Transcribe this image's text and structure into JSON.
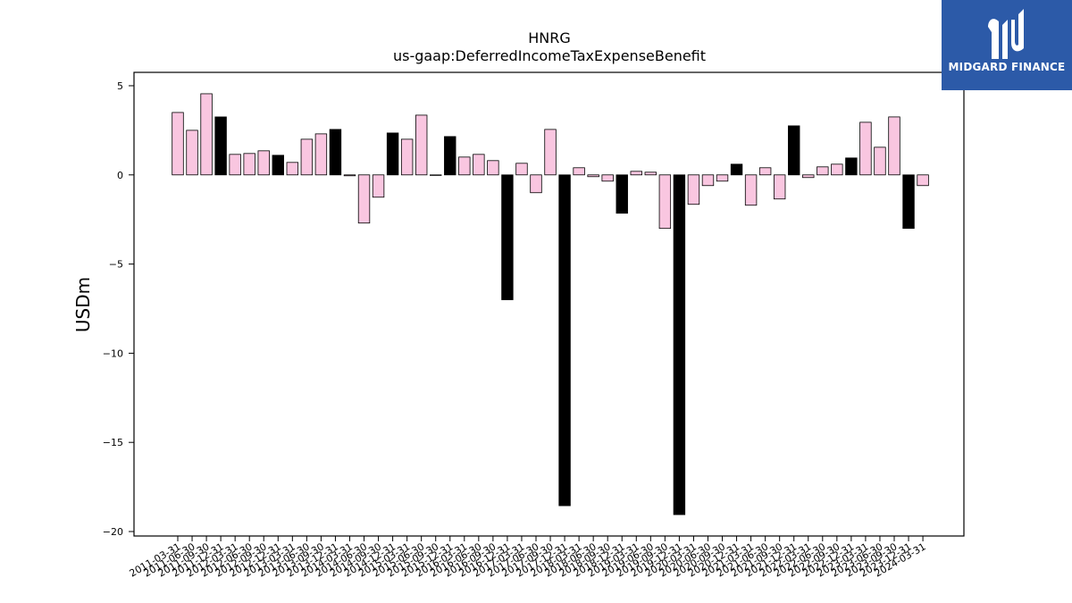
{
  "chart_data": {
    "type": "bar",
    "title": "HNRG",
    "subtitle": "us-gaap:DeferredIncomeTaxExpenseBenefit",
    "ylabel": "USDm",
    "xlabel": "",
    "ylim": [
      -20.25,
      5.75
    ],
    "yticks": [
      5,
      0,
      -5,
      -10,
      -15,
      -20
    ],
    "ytick_labels": [
      "5",
      "0",
      "−5",
      "−10",
      "−15",
      "−20"
    ],
    "grid": false,
    "colors": {
      "quarter": "#f9c6e0",
      "year_end": "#000000",
      "edge": "#000000"
    },
    "categories": [
      "2011-03-31",
      "2011-06-30",
      "2011-09-30",
      "2011-12-31",
      "2012-03-31",
      "2012-06-30",
      "2012-09-30",
      "2012-12-31",
      "2013-03-31",
      "2013-06-30",
      "2013-09-30",
      "2013-12-31",
      "2014-03-31",
      "2014-06-30",
      "2014-09-30",
      "2014-12-31",
      "2015-03-31",
      "2015-06-30",
      "2015-09-30",
      "2015-12-31",
      "2016-03-31",
      "2016-06-30",
      "2016-09-30",
      "2016-12-31",
      "2017-03-31",
      "2017-06-30",
      "2017-09-30",
      "2017-12-31",
      "2018-03-31",
      "2018-06-30",
      "2018-09-30",
      "2018-12-31",
      "2019-03-31",
      "2019-06-30",
      "2019-09-30",
      "2019-12-31",
      "2020-03-31",
      "2020-06-30",
      "2020-09-30",
      "2020-12-31",
      "2021-03-31",
      "2021-06-30",
      "2021-09-30",
      "2021-12-31",
      "2022-03-31",
      "2022-06-30",
      "2022-09-30",
      "2022-12-31",
      "2023-03-31",
      "2023-06-30",
      "2023-09-30",
      "2023-12-31",
      "2024-03-31"
    ],
    "values": [
      3.5,
      2.5,
      4.55,
      3.25,
      1.15,
      1.2,
      1.35,
      1.1,
      0.7,
      2.0,
      2.3,
      2.55,
      -0.05,
      -2.7,
      -1.25,
      2.35,
      2.0,
      3.35,
      0.0,
      2.15,
      1.0,
      1.15,
      0.8,
      -7.0,
      0.65,
      -1.0,
      2.55,
      -18.55,
      0.4,
      -0.1,
      -0.35,
      -2.15,
      0.2,
      0.15,
      -3.0,
      -19.05,
      -1.65,
      -0.6,
      -0.35,
      0.6,
      -1.7,
      0.4,
      -1.35,
      2.75,
      -0.15,
      0.45,
      0.6,
      0.95,
      2.95,
      1.55,
      3.25,
      -3.0,
      -0.6
    ],
    "year_end_flags": [
      false,
      false,
      false,
      true,
      false,
      false,
      false,
      true,
      false,
      false,
      false,
      true,
      false,
      false,
      false,
      true,
      false,
      false,
      false,
      true,
      false,
      false,
      false,
      true,
      false,
      false,
      false,
      true,
      false,
      false,
      false,
      true,
      false,
      false,
      false,
      true,
      false,
      false,
      false,
      true,
      false,
      false,
      false,
      true,
      false,
      false,
      false,
      true,
      false,
      false,
      false,
      true,
      false
    ]
  },
  "logo": {
    "brand": "MIDGARD FINANCE"
  }
}
